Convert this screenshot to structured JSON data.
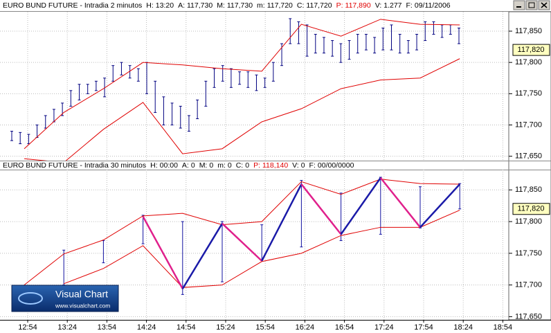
{
  "chart_data": [
    {
      "type": "hilo",
      "title": "EURO BUND FUTURE - Intradia 2 minutos",
      "fields": [
        {
          "label": "H:",
          "value": "13:20"
        },
        {
          "label": "A:",
          "value": "117,730"
        },
        {
          "label": "M:",
          "value": "117,730"
        },
        {
          "label": "m:",
          "value": "117,720"
        },
        {
          "label": "C:",
          "value": "117,720"
        },
        {
          "label": "P:",
          "value": "117,890",
          "color": "#e00000"
        },
        {
          "label": "V:",
          "value": "1.277"
        },
        {
          "label": "F:",
          "value": "09/11/2006"
        }
      ],
      "highs": [
        117.69,
        117.688,
        117.685,
        117.7,
        117.715,
        117.725,
        117.735,
        117.755,
        117.765,
        117.765,
        117.77,
        117.775,
        117.795,
        117.8,
        117.795,
        117.79,
        117.8,
        117.77,
        117.745,
        117.735,
        117.73,
        117.715,
        117.74,
        117.77,
        117.79,
        117.795,
        117.79,
        117.785,
        117.785,
        117.78,
        117.775,
        117.8,
        117.83,
        117.87,
        117.865,
        117.86,
        117.845,
        117.84,
        117.835,
        117.83,
        117.835,
        117.845,
        117.845,
        117.84,
        117.855,
        117.86,
        117.845,
        117.835,
        117.845,
        117.865,
        117.865,
        117.86,
        117.86,
        117.855
      ],
      "lows": [
        117.675,
        117.67,
        117.67,
        117.68,
        117.695,
        117.705,
        117.715,
        117.73,
        117.74,
        117.75,
        117.755,
        117.745,
        117.77,
        117.78,
        117.775,
        117.77,
        117.75,
        117.72,
        117.7,
        117.7,
        117.695,
        117.69,
        117.71,
        117.73,
        117.76,
        117.77,
        117.76,
        117.765,
        117.76,
        117.755,
        117.76,
        117.77,
        117.795,
        117.83,
        117.83,
        117.81,
        117.815,
        117.815,
        117.81,
        117.8,
        117.805,
        117.815,
        117.82,
        117.815,
        117.82,
        117.82,
        117.815,
        117.815,
        117.82,
        117.835,
        117.845,
        117.84,
        117.845,
        117.83
      ],
      "bar_color": "#000080",
      "upper": [
        117.662,
        117.72,
        117.758,
        117.8,
        117.796,
        117.79,
        117.786,
        117.861,
        117.842,
        117.869,
        117.861,
        117.86
      ],
      "lower": [
        117.646,
        117.64,
        117.693,
        117.736,
        117.654,
        117.662,
        117.705,
        117.726,
        117.758,
        117.772,
        117.775,
        117.806
      ],
      "envelope_color": "#e00000",
      "ylim": [
        117.643,
        117.881
      ],
      "yticks": [
        {
          "value": 117.85,
          "label": "117,850"
        },
        {
          "value": 117.8,
          "label": "117,800"
        },
        {
          "value": 117.75,
          "label": "117,750"
        },
        {
          "value": 117.7,
          "label": "117,700"
        },
        {
          "value": 117.65,
          "label": "117,650"
        }
      ],
      "price": {
        "value": 117.82,
        "label": "117,820"
      },
      "grid": true
    },
    {
      "type": "hilo",
      "title": "EURO BUND FUTURE - Intradia 30 minutos",
      "fields": [
        {
          "label": "H:",
          "value": "00:00"
        },
        {
          "label": "A:",
          "value": "0"
        },
        {
          "label": "M:",
          "value": "0"
        },
        {
          "label": "m:",
          "value": "0"
        },
        {
          "label": "C:",
          "value": "0"
        },
        {
          "label": "P:",
          "value": "118,140",
          "color": "#e00000"
        },
        {
          "label": "V:",
          "value": "0"
        },
        {
          "label": "F:",
          "value": "00/00/0000"
        }
      ],
      "highs": [
        117.695,
        117.755,
        117.77,
        117.81,
        117.8,
        117.8,
        117.795,
        117.865,
        117.845,
        117.87,
        117.855,
        117.86
      ],
      "lows": [
        117.68,
        117.7,
        117.735,
        117.765,
        117.685,
        117.705,
        117.74,
        117.76,
        117.77,
        117.78,
        117.79,
        117.82
      ],
      "bar_color": "#1010a0",
      "upper": [
        117.7,
        117.749,
        117.771,
        117.809,
        117.813,
        117.795,
        117.8,
        117.863,
        117.843,
        117.867,
        117.86,
        117.859
      ],
      "lower": [
        null,
        117.702,
        117.726,
        117.762,
        117.696,
        117.7,
        117.737,
        117.75,
        117.778,
        117.791,
        117.791,
        117.818
      ],
      "envelope_color": "#e00000",
      "zigzag": [
        null,
        null,
        null,
        117.808,
        117.694,
        117.797,
        117.738,
        117.859,
        117.78,
        117.869,
        117.791,
        117.859
      ],
      "up_color": "#1a1aa8",
      "down_color": "#e0208c",
      "ylim": [
        117.645,
        117.882
      ],
      "yticks": [
        {
          "value": 117.85,
          "label": "117,850"
        },
        {
          "value": 117.8,
          "label": "117,800"
        },
        {
          "value": 117.75,
          "label": "117,750"
        },
        {
          "value": 117.7,
          "label": "117,700"
        },
        {
          "value": 117.65,
          "label": "117,650"
        }
      ],
      "price": {
        "value": 117.82,
        "label": "117,820"
      },
      "grid": true
    }
  ],
  "time_ticks": [
    "12:54",
    "13:24",
    "13:54",
    "14:24",
    "14:54",
    "15:24",
    "15:54",
    "16:24",
    "16:54",
    "17:24",
    "17:54",
    "18:24",
    "18:54"
  ],
  "logo": {
    "name": "Visual Chart",
    "url": "www.visualchart.com"
  }
}
